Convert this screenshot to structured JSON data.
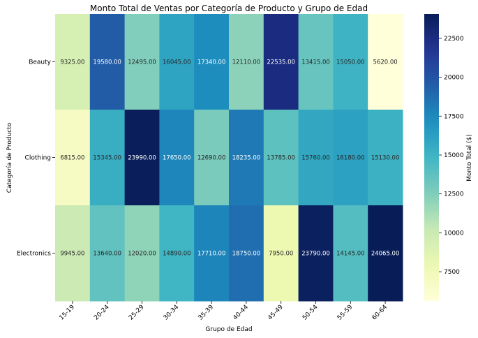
{
  "chart_data": {
    "type": "heatmap",
    "title": "Monto Total de Ventas por Categoría de Producto y Grupo de Edad",
    "xlabel": "Grupo de Edad",
    "ylabel": "Categoría de Producto",
    "x": [
      "15-19",
      "20-24",
      "25-29",
      "30-34",
      "35-39",
      "40-44",
      "45-49",
      "50-54",
      "55-59",
      "60-64"
    ],
    "y": [
      "Beauty",
      "Clothing",
      "Electronics"
    ],
    "values": [
      [
        9325.0,
        19580.0,
        12495.0,
        16045.0,
        17340.0,
        12110.0,
        22535.0,
        13415.0,
        15050.0,
        5620.0
      ],
      [
        6815.0,
        15345.0,
        23990.0,
        17650.0,
        12690.0,
        18235.0,
        13785.0,
        15760.0,
        16180.0,
        15130.0
      ],
      [
        9945.0,
        13640.0,
        12020.0,
        14890.0,
        17710.0,
        18750.0,
        7950.0,
        23790.0,
        14145.0,
        24065.0
      ]
    ],
    "value_format": "0.00",
    "colormap": "YlGnBu",
    "colorbar": {
      "label": "Monto Total ($)",
      "ticks": [
        7500,
        10000,
        12500,
        15000,
        17500,
        20000,
        22500
      ]
    }
  }
}
